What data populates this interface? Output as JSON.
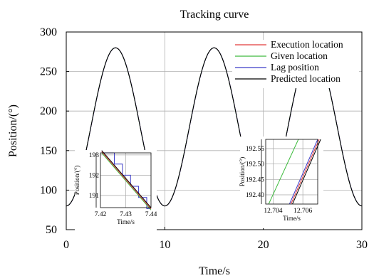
{
  "chart_data": {
    "type": "line",
    "title": "Tracking curve",
    "xlabel": "Time/s",
    "ylabel": "Position/(°)",
    "xlim": [
      0,
      30
    ],
    "ylim": [
      50,
      300
    ],
    "xticks": [
      "0",
      "10",
      "20",
      "30"
    ],
    "yticks": [
      "50",
      "100",
      "150",
      "200",
      "250",
      "300"
    ],
    "grid": true,
    "legend_position": "top-right",
    "series": [
      {
        "name": "Execution location",
        "color": "#e23b3b"
      },
      {
        "name": "Given location",
        "color": "#3dbb3d"
      },
      {
        "name": "Lag position",
        "color": "#3a3ac8"
      },
      {
        "name": "Predicted location",
        "color": "#000000"
      }
    ],
    "curve": {
      "min": 80,
      "max": 280,
      "period": 10,
      "peaks_at": [
        5,
        15,
        25
      ]
    },
    "insets": [
      {
        "xlim": [
          7.42,
          7.44
        ],
        "ylim": [
          190.4,
          193.1
        ],
        "xticks": [
          "7.42",
          "7.43",
          "7.44"
        ],
        "yticks": [
          "193",
          "192",
          "191"
        ],
        "xlabel": "Time/s",
        "ylabel": "Position/(°)"
      },
      {
        "xlim": [
          12.7035,
          12.707
        ],
        "ylim": [
          192.37,
          192.58
        ],
        "xticks": [
          "12.704",
          "12.706"
        ],
        "yticks": [
          "192.55",
          "192.50",
          "192.45",
          "192.40"
        ],
        "xlabel": "Time/s",
        "ylabel": "Position/(°)"
      }
    ]
  }
}
